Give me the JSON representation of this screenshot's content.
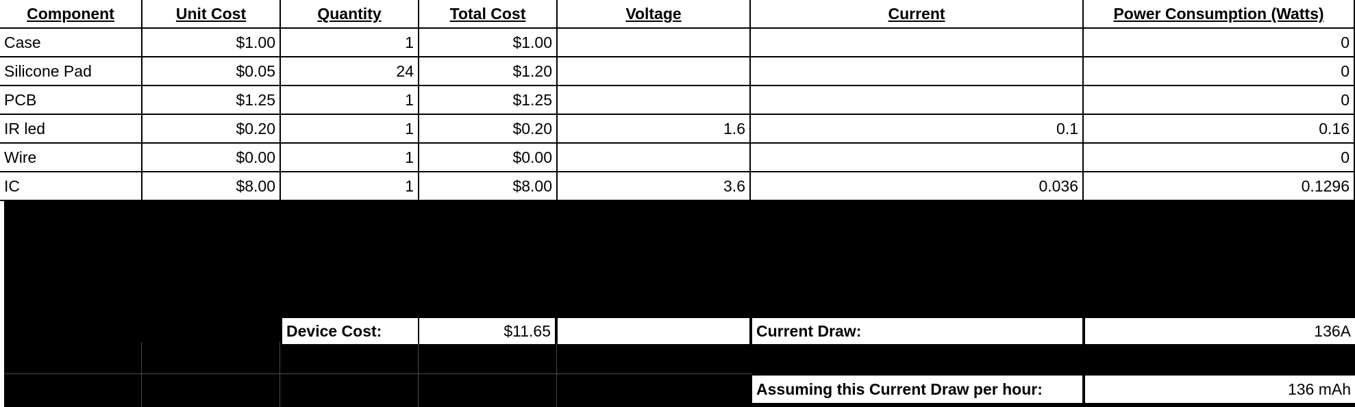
{
  "columns": [
    "Component",
    "Unit Cost",
    "Quantity",
    "Total Cost",
    "Voltage",
    "Current",
    "Power Consumption (Watts)"
  ],
  "rows": [
    [
      "Case",
      "$1.00",
      "1",
      "$1.00",
      "",
      "",
      "0"
    ],
    [
      "Silicone Pad",
      "$0.05",
      "24",
      "$1.20",
      "",
      "",
      "0"
    ],
    [
      "PCB",
      "$1.25",
      "1",
      "$1.25",
      "",
      "",
      "0"
    ],
    [
      "IR led",
      "$0.20",
      "1",
      "$0.20",
      "1.6",
      "0.1",
      "0.16"
    ],
    [
      "Wire",
      "$0.00",
      "1",
      "$0.00",
      "",
      "",
      "0"
    ],
    [
      "IC",
      "$8.00",
      "1",
      "$8.00",
      "3.6",
      "0.036",
      "0.1296"
    ]
  ],
  "summary": {
    "device_cost_label": "Device Cost:",
    "device_cost_value": "$11.65",
    "current_draw_label": "Current Draw:",
    "current_draw_value": "136A",
    "assumption_label": "Assuming this Current Draw per hour:",
    "assumption_value": "136 mAh"
  }
}
